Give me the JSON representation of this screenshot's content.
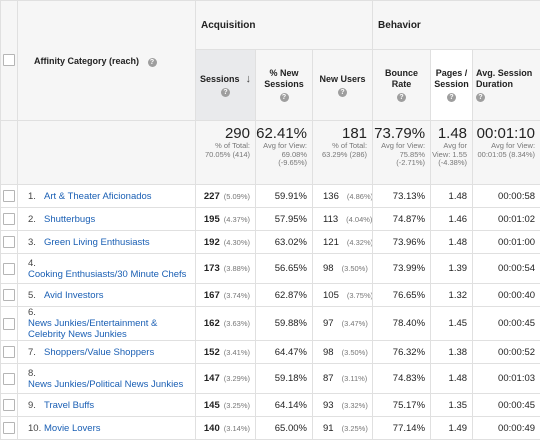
{
  "header": {
    "dimension_label": "Affinity Category (reach)",
    "acquisition_label": "Acquisition",
    "behavior_label": "Behavior",
    "help_glyph": "?",
    "sort_arrow": "↓",
    "columns": [
      {
        "label": "Sessions"
      },
      {
        "label": "% New Sessions"
      },
      {
        "label": "New Users"
      },
      {
        "label": "Bounce Rate"
      },
      {
        "label": "Pages / Session"
      },
      {
        "label": "Avg. Session Duration"
      }
    ]
  },
  "totals": {
    "sessions": {
      "value": "290",
      "sub": "% of Total: 70.05% (414)"
    },
    "new_sessions": {
      "value": "62.41%",
      "sub": "Avg for View: 69.08% (-9.65%)"
    },
    "new_users": {
      "value": "181",
      "sub": "% of Total: 63.29% (286)"
    },
    "bounce_rate": {
      "value": "73.79%",
      "sub": "Avg for View: 75.85% (-2.71%)"
    },
    "pages_session": {
      "value": "1.48",
      "sub": "Avg for View: 1.55 (-4.38%)"
    },
    "duration": {
      "value": "00:01:10",
      "sub": "Avg for View: 00:01:05 (8.34%)"
    }
  },
  "rows": [
    {
      "num": "1.",
      "name": "Art & Theater Aficionados",
      "sessions": "227",
      "sessions_pct": "(5.09%)",
      "new_sessions": "59.91%",
      "new_users": "136",
      "new_users_pct": "(4.86%)",
      "bounce": "73.13%",
      "pages": "1.48",
      "duration": "00:00:58"
    },
    {
      "num": "2.",
      "name": "Shutterbugs",
      "sessions": "195",
      "sessions_pct": "(4.37%)",
      "new_sessions": "57.95%",
      "new_users": "113",
      "new_users_pct": "(4.04%)",
      "bounce": "74.87%",
      "pages": "1.46",
      "duration": "00:01:02"
    },
    {
      "num": "3.",
      "name": "Green Living Enthusiasts",
      "sessions": "192",
      "sessions_pct": "(4.30%)",
      "new_sessions": "63.02%",
      "new_users": "121",
      "new_users_pct": "(4.32%)",
      "bounce": "73.96%",
      "pages": "1.48",
      "duration": "00:01:00"
    },
    {
      "num": "4.",
      "name": "Cooking Enthusiasts/30 Minute Chefs",
      "sessions": "173",
      "sessions_pct": "(3.88%)",
      "new_sessions": "56.65%",
      "new_users": "98",
      "new_users_pct": "(3.50%)",
      "bounce": "73.99%",
      "pages": "1.39",
      "duration": "00:00:54"
    },
    {
      "num": "5.",
      "name": "Avid Investors",
      "sessions": "167",
      "sessions_pct": "(3.74%)",
      "new_sessions": "62.87%",
      "new_users": "105",
      "new_users_pct": "(3.75%)",
      "bounce": "76.65%",
      "pages": "1.32",
      "duration": "00:00:40"
    },
    {
      "num": "6.",
      "name": "News Junkies/Entertainment & Celebrity News Junkies",
      "sessions": "162",
      "sessions_pct": "(3.63%)",
      "new_sessions": "59.88%",
      "new_users": "97",
      "new_users_pct": "(3.47%)",
      "bounce": "78.40%",
      "pages": "1.45",
      "duration": "00:00:45"
    },
    {
      "num": "7.",
      "name": "Shoppers/Value Shoppers",
      "sessions": "152",
      "sessions_pct": "(3.41%)",
      "new_sessions": "64.47%",
      "new_users": "98",
      "new_users_pct": "(3.50%)",
      "bounce": "76.32%",
      "pages": "1.38",
      "duration": "00:00:52"
    },
    {
      "num": "8.",
      "name": "News Junkies/Political News Junkies",
      "sessions": "147",
      "sessions_pct": "(3.29%)",
      "new_sessions": "59.18%",
      "new_users": "87",
      "new_users_pct": "(3.11%)",
      "bounce": "74.83%",
      "pages": "1.48",
      "duration": "00:01:03"
    },
    {
      "num": "9.",
      "name": "Travel Buffs",
      "sessions": "145",
      "sessions_pct": "(3.25%)",
      "new_sessions": "64.14%",
      "new_users": "93",
      "new_users_pct": "(3.32%)",
      "bounce": "75.17%",
      "pages": "1.35",
      "duration": "00:00:45"
    },
    {
      "num": "10.",
      "name": "Movie Lovers",
      "sessions": "140",
      "sessions_pct": "(3.14%)",
      "new_sessions": "65.00%",
      "new_users": "91",
      "new_users_pct": "(3.25%)",
      "bounce": "77.14%",
      "pages": "1.49",
      "duration": "00:00:49"
    }
  ]
}
